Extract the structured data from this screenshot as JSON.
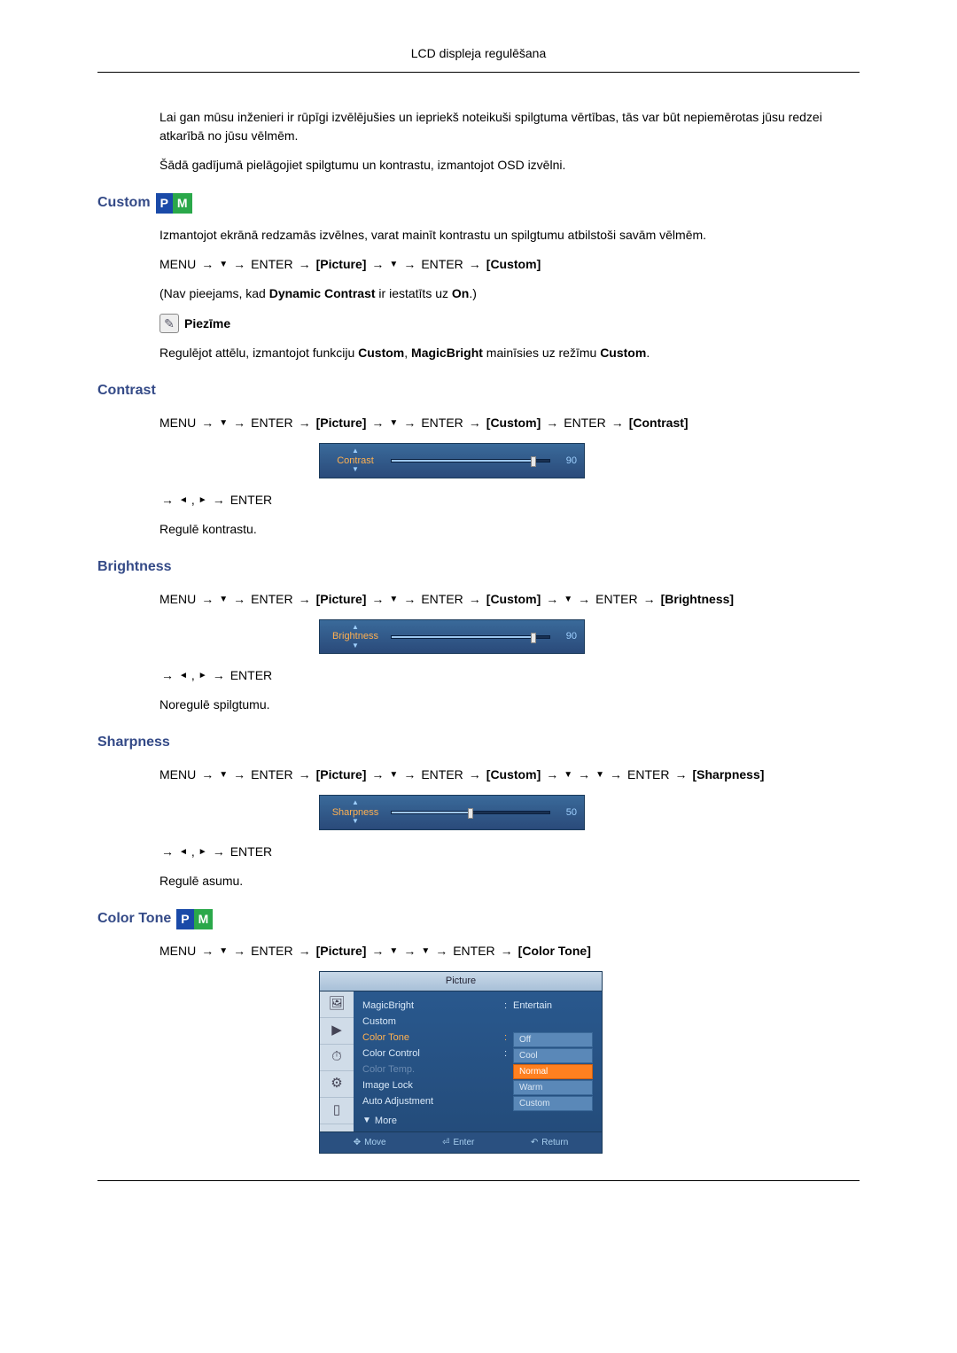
{
  "header": {
    "title": "LCD displeja regulēšana"
  },
  "intro": {
    "p1": "Lai gan mūsu inženieri ir rūpīgi izvēlējušies un iepriekš noteikuši spilgtuma vērtības, tās var būt nepiemērotas jūsu redzei atkarībā no jūsu vēlmēm.",
    "p2": "Šādā gadījumā pielāgojiet spilgtumu un kontrastu, izmantojot OSD izvēlni."
  },
  "custom": {
    "title": "Custom",
    "desc": "Izmantojot ekrānā redzamās izvēlnes, varat mainīt kontrastu un spilgtumu atbilstoši savām vēlmēm.",
    "path": {
      "menu": "MENU",
      "enter1": "ENTER",
      "picture": "Picture",
      "enter2": "ENTER",
      "custom": "Custom"
    },
    "note_prefix": "(Nav pieejams, kad ",
    "note_bold1": "Dynamic Contrast",
    "note_mid": " ir iestatīts uz ",
    "note_bold2": "On",
    "note_suffix": ".)",
    "note_label": "Piezīme",
    "p3a": "Regulējot attēlu, izmantojot funkciju ",
    "p3b": "Custom",
    "p3c": ", ",
    "p3d": "MagicBright",
    "p3e": " mainīsies uz režīmu ",
    "p3f": "Custom",
    "p3g": "."
  },
  "contrast": {
    "title": "Contrast",
    "path": {
      "menu": "MENU",
      "enter1": "ENTER",
      "picture": "Picture",
      "enter2": "ENTER",
      "custom": "Custom",
      "enter3": "ENTER",
      "contrast": "Contrast"
    },
    "slider": {
      "label": "Contrast",
      "value": 90,
      "percent": 90
    },
    "adjust_enter": "ENTER",
    "desc": "Regulē kontrastu."
  },
  "brightness": {
    "title": "Brightness",
    "path": {
      "menu": "MENU",
      "enter1": "ENTER",
      "picture": "Picture",
      "enter2": "ENTER",
      "custom": "Custom",
      "enter3": "ENTER",
      "brightness": "Brightness"
    },
    "slider": {
      "label": "Brightness",
      "value": 90,
      "percent": 90
    },
    "adjust_enter": "ENTER",
    "desc": "Noregulē spilgtumu."
  },
  "sharpness": {
    "title": "Sharpness",
    "path": {
      "menu": "MENU",
      "enter1": "ENTER",
      "picture": "Picture",
      "enter2": "ENTER",
      "custom": "Custom",
      "enter3": "ENTER",
      "sharpness": "Sharpness"
    },
    "slider": {
      "label": "Sharpness",
      "value": 50,
      "percent": 50
    },
    "adjust_enter": "ENTER",
    "desc": "Regulē asumu."
  },
  "colortone": {
    "title": "Color Tone",
    "path": {
      "menu": "MENU",
      "enter1": "ENTER",
      "picture": "Picture",
      "enter2": "ENTER",
      "colortone": "Color Tone"
    },
    "osd": {
      "title": "Picture",
      "items": {
        "magicbright": "MagicBright",
        "magicbright_val": "Entertain",
        "custom": "Custom",
        "colortone": "Color Tone",
        "colorcontrol": "Color Control",
        "colortemp": "Color Temp.",
        "imagelock": "Image Lock",
        "autoadj": "Auto Adjustment",
        "more": "More"
      },
      "options": {
        "off": "Off",
        "cool": "Cool",
        "normal": "Normal",
        "warm": "Warm",
        "custom": "Custom"
      },
      "footer": {
        "move": "Move",
        "enter": "Enter",
        "return": "Return"
      }
    }
  },
  "colors": {
    "heading": "#344a87",
    "osd_bg_top": "#3a6a9a",
    "osd_bg_bottom": "#2a4a7a",
    "highlight": "#ffb050",
    "selected": "#ff8020",
    "slider_fill": "#9fc8ef",
    "p_badge": "#1a4aa8",
    "m_badge": "#2aa84a"
  }
}
